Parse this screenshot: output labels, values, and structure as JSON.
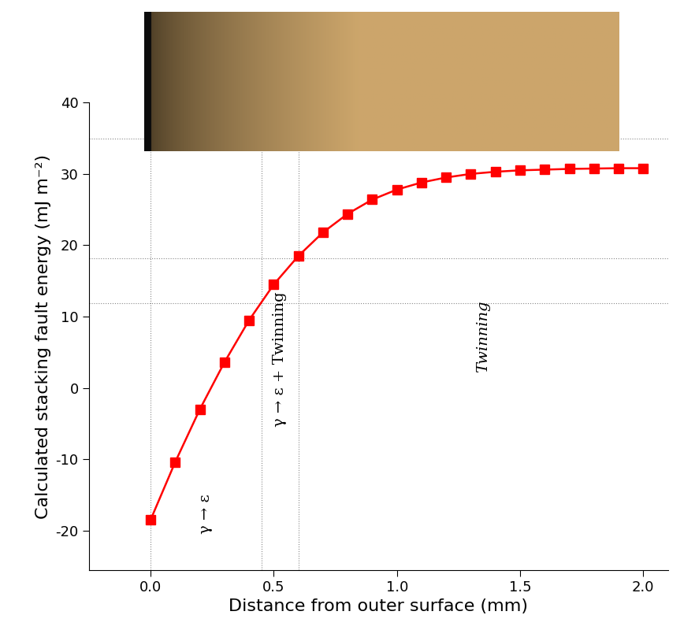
{
  "chart_data": {
    "type": "line",
    "x_label": "Distance from outer surface (mm)",
    "y_label": "Calculated stacking fault energy (mJ m⁻²)",
    "x": [
      0.0,
      0.1,
      0.2,
      0.3,
      0.4,
      0.5,
      0.6,
      0.7,
      0.8,
      0.9,
      1.0,
      1.1,
      1.2,
      1.3,
      1.4,
      1.5,
      1.6,
      1.7,
      1.8,
      1.9,
      2.0
    ],
    "series": [
      {
        "name": "Calculated stacking fault energy",
        "color": "#ff0000",
        "marker": "square",
        "line_style": "solid",
        "values": [
          -18.5,
          -10.4,
          -3.0,
          3.6,
          9.5,
          14.5,
          18.5,
          21.8,
          24.4,
          26.4,
          27.8,
          28.8,
          29.5,
          30.0,
          30.3,
          30.5,
          30.6,
          30.7,
          30.75,
          30.8,
          30.8
        ]
      }
    ],
    "xlim": [
      -0.25,
      2.1
    ],
    "ylim": [
      -25.5,
      40
    ],
    "xticks": [
      {
        "value": 0,
        "label": "0.0"
      },
      {
        "value": 0.5,
        "label": "0.5"
      },
      {
        "value": 1,
        "label": "1.0"
      },
      {
        "value": 1.5,
        "label": "1.5"
      },
      {
        "value": 2,
        "label": "2.0"
      }
    ],
    "yticks": [
      -20,
      -10,
      0,
      10,
      20,
      30,
      40
    ],
    "vlines": [
      0,
      0.45,
      0.6
    ],
    "hlines": [
      35,
      18.2,
      11.9
    ],
    "annotations": [
      "γ → ε",
      "γ → ε + Twinning",
      "Twinning"
    ],
    "grid": false
  }
}
